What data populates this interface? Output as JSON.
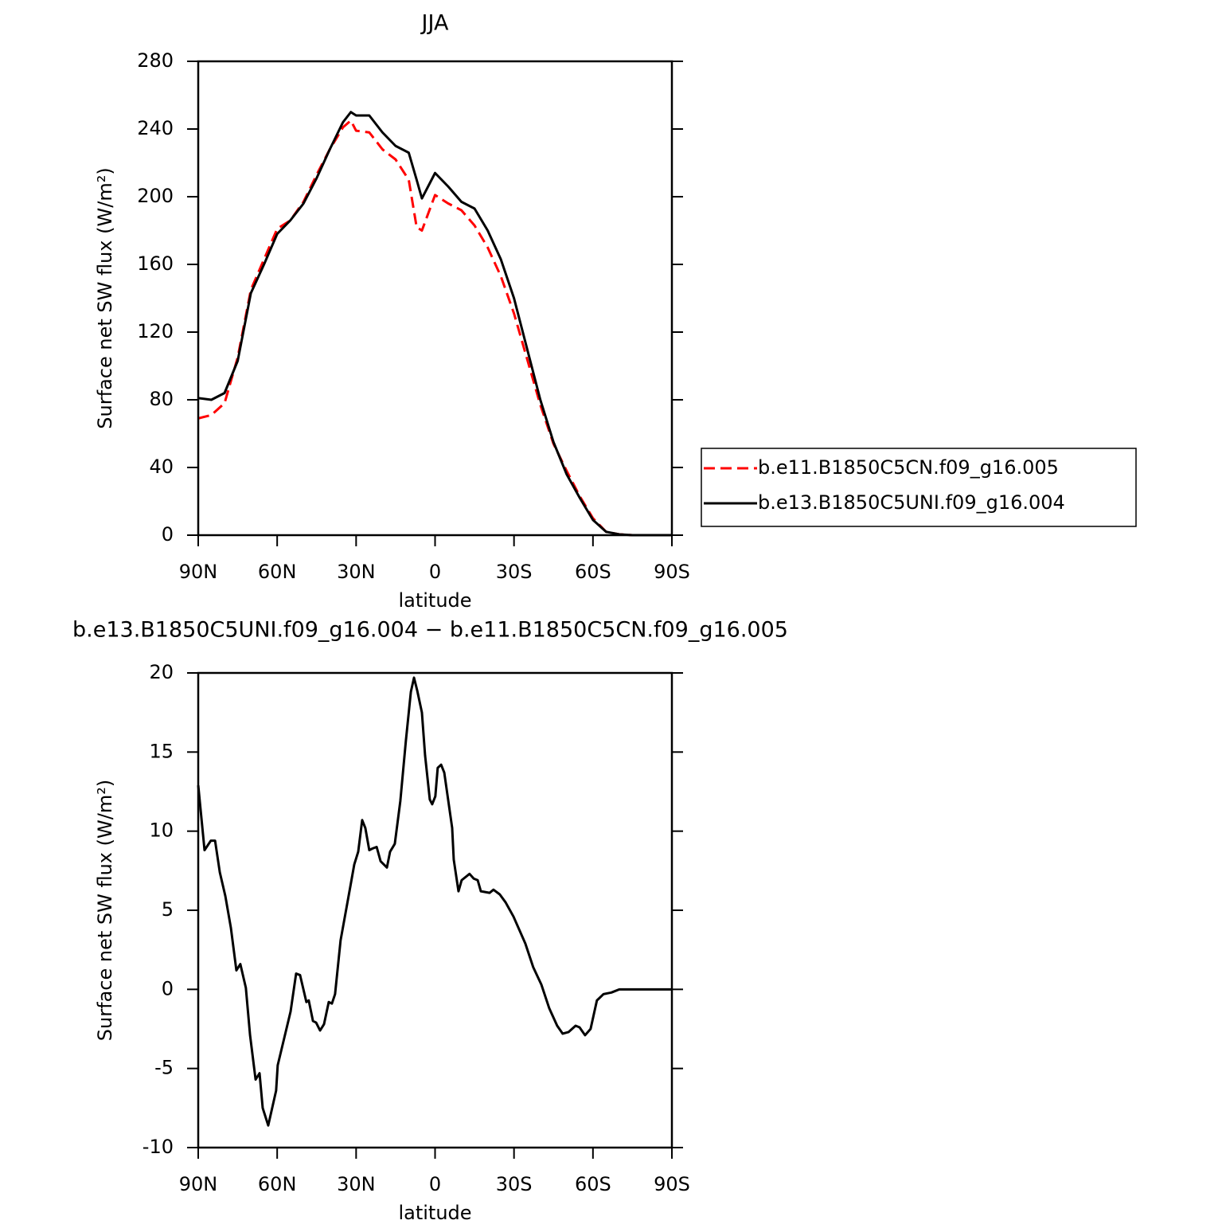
{
  "chart_data": [
    {
      "type": "line",
      "title": "JJA",
      "x_label": "latitude",
      "y_label": "Surface net SW flux (W/m²)",
      "x": [
        90,
        85,
        80,
        75,
        70,
        65,
        60,
        55,
        50,
        45,
        40,
        35,
        32,
        30,
        25,
        20,
        15,
        10,
        7,
        5,
        0,
        -5,
        -10,
        -15,
        -20,
        -25,
        -30,
        -35,
        -40,
        -45,
        -50,
        -55,
        -60,
        -65,
        -70,
        -75,
        -80,
        -85,
        -90
      ],
      "series": [
        {
          "name": "b.e11.B1850C5CN.f09_g16.005",
          "color": "#ff0000",
          "dashed": true,
          "values": [
            69,
            71,
            78,
            105,
            145,
            163,
            181,
            186,
            197,
            213,
            228,
            241,
            245,
            239,
            238,
            228,
            222,
            210,
            182,
            180,
            201,
            196,
            192,
            183,
            170,
            153,
            131,
            104,
            77,
            54,
            38,
            23,
            10,
            2,
            0.5,
            0,
            0,
            0,
            0
          ]
        },
        {
          "name": "b.e13.B1850C5UNI.f09_g16.004",
          "color": "#000000",
          "dashed": false,
          "values": [
            81,
            80,
            84,
            103,
            143,
            160,
            178,
            186,
            196,
            211,
            228,
            244,
            250,
            248,
            248,
            238,
            230,
            226,
            210,
            199,
            214,
            206,
            197,
            193,
            180,
            163,
            140,
            110,
            80,
            55,
            36,
            22,
            9,
            2,
            0.5,
            0,
            0,
            0,
            0
          ]
        }
      ],
      "xlim": [
        90,
        -90
      ],
      "xticks": [
        {
          "value": 90,
          "label": "90N"
        },
        {
          "value": 60,
          "label": "60N"
        },
        {
          "value": 30,
          "label": "30N"
        },
        0,
        {
          "value": -30,
          "label": "30S"
        },
        {
          "value": -60,
          "label": "60S"
        },
        {
          "value": -90,
          "label": "90S"
        }
      ],
      "ylim": [
        0,
        280
      ],
      "yticks": [
        0,
        40,
        80,
        120,
        160,
        200,
        240,
        280
      ],
      "grid": false,
      "legend": "right"
    },
    {
      "type": "line",
      "title": "b.e13.B1850C5UNI.f09_g16.004 − b.e11.B1850C5CN.f09_g16.005",
      "x_label": "latitude",
      "y_label": "Surface net SW flux (W/m²)",
      "x": [
        90,
        87.6,
        85.2,
        83.6,
        81.8,
        79.7,
        77.6,
        75.5,
        74,
        71.9,
        70.3,
        68.2,
        66.7,
        65.5,
        63.4,
        60.4,
        59.8,
        54.9,
        52.8,
        51.3,
        48.9,
        48,
        46.4,
        45.2,
        43.7,
        42.2,
        40.4,
        39.2,
        38,
        35.9,
        32.2,
        30.7,
        29.2,
        27.7,
        26.5,
        25,
        23.8,
        22.2,
        20.7,
        18.3,
        17.1,
        15.3,
        13.2,
        11.1,
        9.2,
        8,
        6.8,
        5,
        3.8,
        2,
        1.1,
        -0.1,
        -1,
        -2.3,
        -3.5,
        -6.5,
        -7.1,
        -8.9,
        -10.1,
        -13.1,
        -14.7,
        -16.2,
        -17.4,
        -20.7,
        -22.2,
        -24.6,
        -26.8,
        -29.8,
        -34.3,
        -37.3,
        -40.4,
        -43.4,
        -46.4,
        -48.5,
        -50.7,
        -53.4,
        -54.9,
        -57,
        -59.1,
        -61.5,
        -64,
        -67,
        -70,
        -90
      ],
      "series": [
        {
          "color": "#000000",
          "dashed": false,
          "values": [
            12.9,
            8.8,
            9.4,
            9.4,
            7.4,
            5.9,
            3.9,
            1.2,
            1.6,
            0.1,
            -2.9,
            -5.7,
            -5.3,
            -7.5,
            -8.6,
            -6.4,
            -4.8,
            -1.4,
            1.0,
            0.9,
            -0.8,
            -0.7,
            -2.0,
            -2.1,
            -2.6,
            -2.2,
            -0.8,
            -0.9,
            -0.3,
            3.1,
            6.5,
            7.9,
            8.7,
            10.7,
            10.2,
            8.8,
            8.9,
            9.0,
            8.1,
            7.7,
            8.7,
            9.2,
            11.9,
            15.7,
            18.8,
            19.7,
            18.9,
            17.5,
            14.8,
            12.0,
            11.7,
            12.2,
            14.0,
            14.2,
            13.7,
            10.2,
            8.2,
            6.2,
            6.9,
            7.3,
            7.0,
            6.9,
            6.2,
            6.1,
            6.3,
            6.0,
            5.5,
            4.6,
            2.9,
            1.4,
            0.3,
            -1.2,
            -2.3,
            -2.8,
            -2.7,
            -2.3,
            -2.4,
            -2.9,
            -2.5,
            -0.7,
            -0.3,
            -0.2,
            0,
            0
          ]
        }
      ],
      "xlim": [
        90,
        -90
      ],
      "xticks": [
        {
          "value": 90,
          "label": "90N"
        },
        {
          "value": 60,
          "label": "60N"
        },
        {
          "value": 30,
          "label": "30N"
        },
        0,
        {
          "value": -30,
          "label": "30S"
        },
        {
          "value": -60,
          "label": "60S"
        },
        {
          "value": -90,
          "label": "90S"
        }
      ],
      "ylim": [
        -10,
        20
      ],
      "yticks": [
        -10,
        -5,
        0,
        5,
        10,
        15,
        20
      ],
      "grid": false
    }
  ]
}
